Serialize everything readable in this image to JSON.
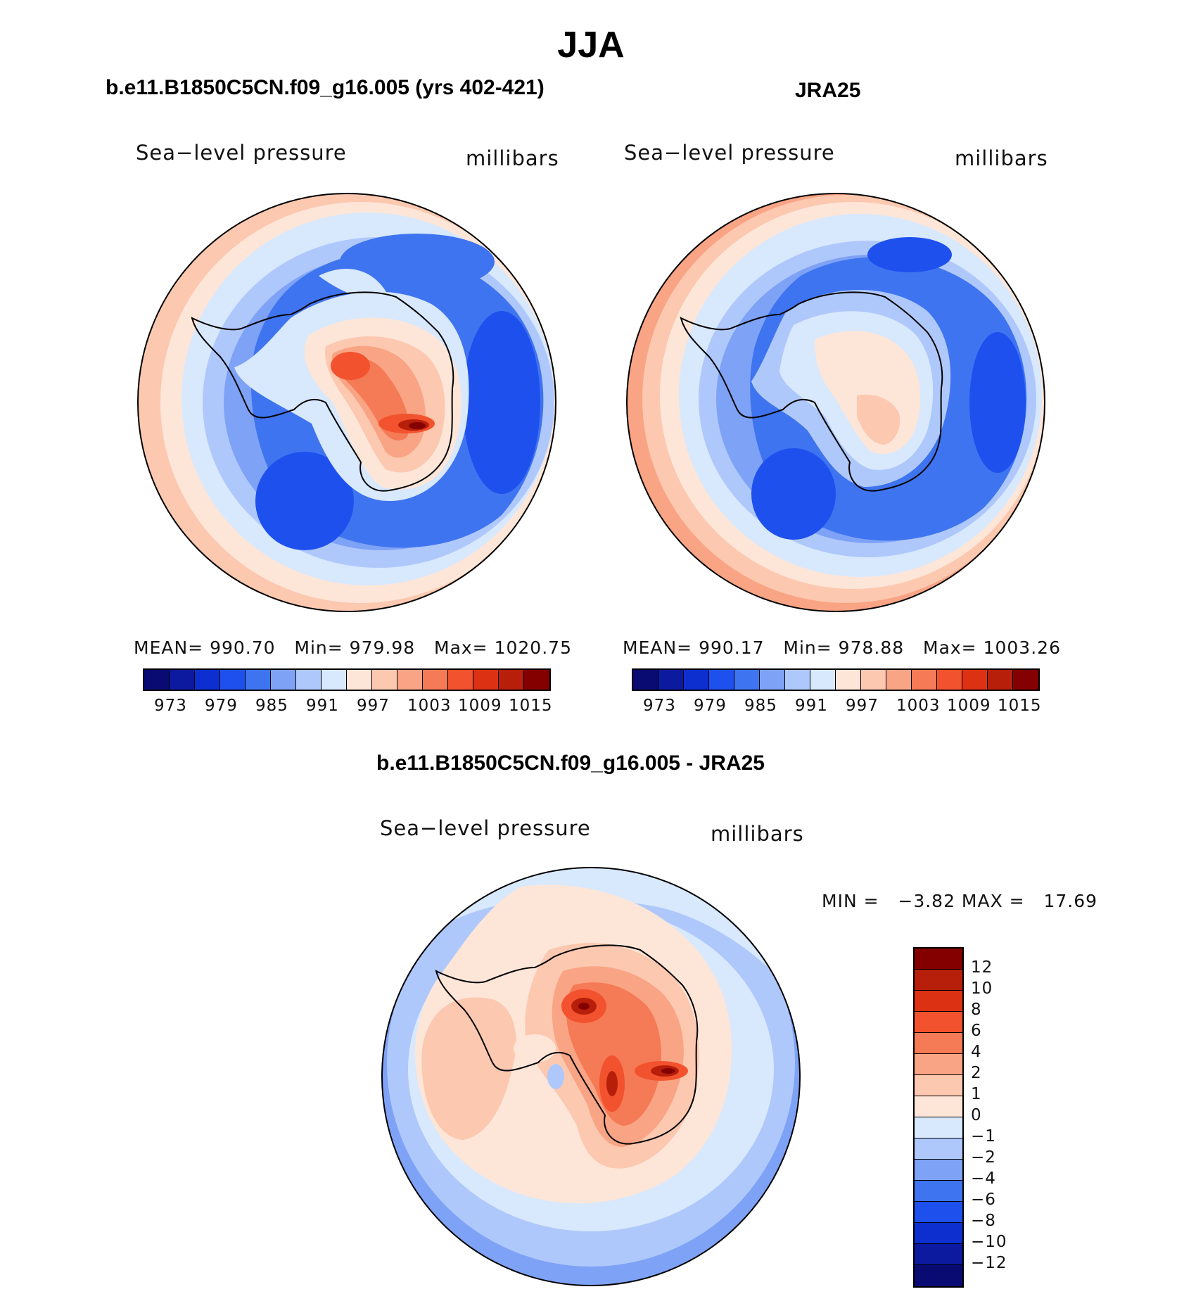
{
  "main_title": "JJA",
  "panels": [
    {
      "title": "b.e11.B1850C5CN.f09_g16.005 (yrs 402-421)",
      "variable": "Sea−level pressure",
      "units": "millibars",
      "stats": {
        "mean_label": "MEAN=",
        "mean": "990.70",
        "min_label": "Min=",
        "min": "979.98",
        "max_label": "Max=",
        "max": "1020.75"
      }
    },
    {
      "title": "JRA25",
      "variable": "Sea−level pressure",
      "units": "millibars",
      "stats": {
        "mean_label": "MEAN=",
        "mean": "990.17",
        "min_label": "Min=",
        "min": "978.88",
        "max_label": "Max=",
        "max": "1003.26"
      }
    },
    {
      "title": "b.e11.B1850C5CN.f09_g16.005 - JRA25",
      "variable": "Sea−level pressure",
      "units": "millibars",
      "minmax_text": "MIN =   −3.82 MAX =   17.69"
    }
  ],
  "colorbar_abs": {
    "colors": [
      "#0a0a73",
      "#0b1a9e",
      "#0d2fcf",
      "#1e50ee",
      "#3f74f0",
      "#7ea2f6",
      "#afc8fb",
      "#d8e8fd",
      "#fde6d8",
      "#fcc8b0",
      "#f9a484",
      "#f57a56",
      "#f2522d",
      "#dc3213",
      "#b71f0b",
      "#840000"
    ],
    "tick_labels": [
      "973",
      "979",
      "985",
      "991",
      "997",
      "1003",
      "1009",
      "1015"
    ]
  },
  "colorbar_diff": {
    "colors": [
      "#840000",
      "#b71f0b",
      "#dc3213",
      "#f2522d",
      "#f57a56",
      "#f9a484",
      "#fcc8b0",
      "#fde6d8",
      "#d8e8fd",
      "#afc8fb",
      "#7ea2f6",
      "#3f74f0",
      "#1e50ee",
      "#0d2fcf",
      "#0b1a9e",
      "#0a0a73"
    ],
    "tick_labels": [
      "12",
      "10",
      "8",
      "6",
      "4",
      "2",
      "1",
      "0",
      "−1",
      "−2",
      "−4",
      "−6",
      "−8",
      "−10",
      "−12"
    ]
  }
}
